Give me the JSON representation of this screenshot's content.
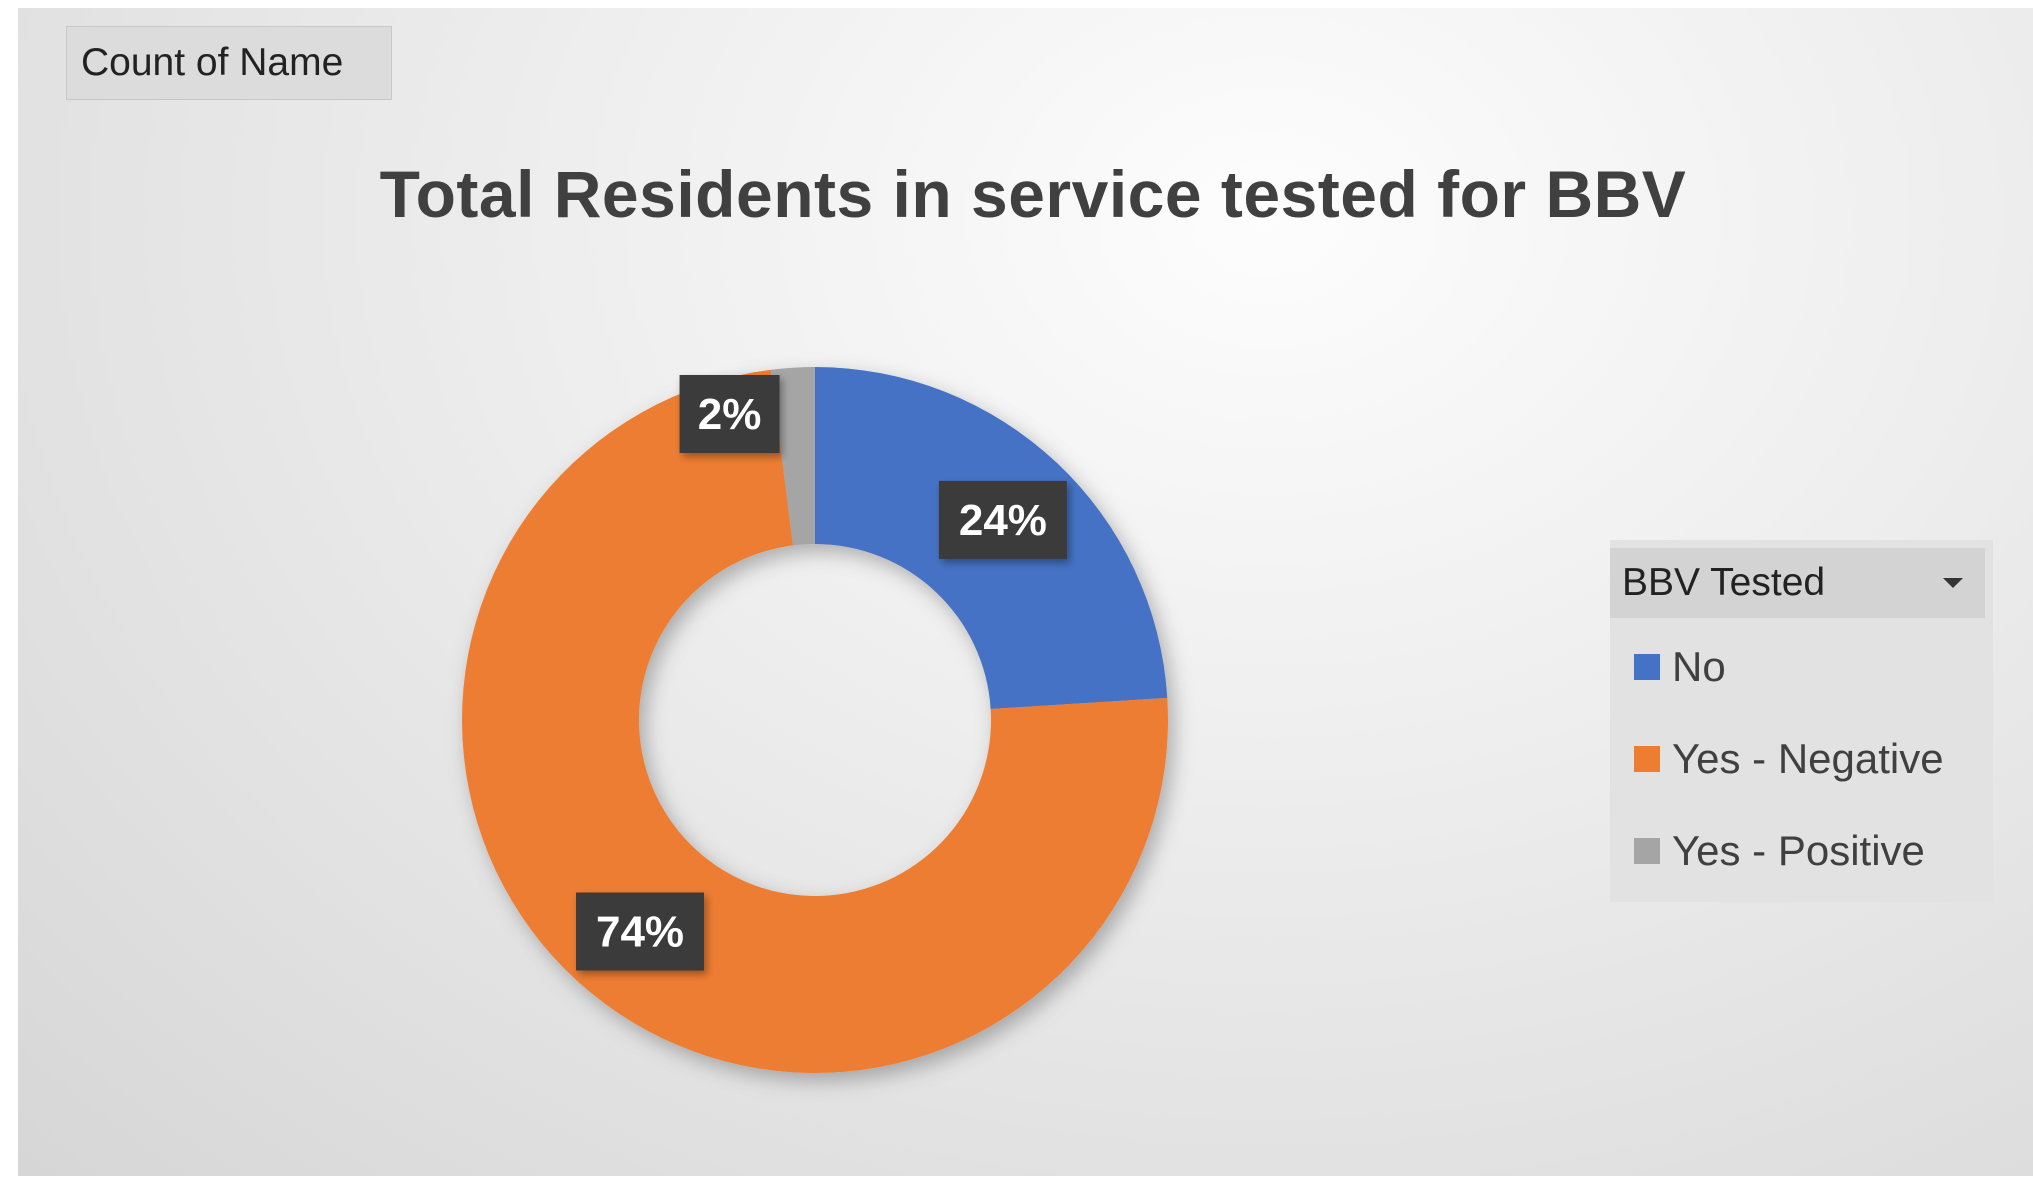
{
  "field_button": {
    "label": "Count of Name"
  },
  "chart_data": {
    "type": "pie",
    "title": "Total Residents in service tested for BBV",
    "variant": "donut",
    "legend_title": "BBV Tested",
    "legend_position": "right",
    "slices": [
      {
        "label": "No",
        "value": 24,
        "display": "24%",
        "color": "#4472c4"
      },
      {
        "label": "Yes - Negative",
        "value": 74,
        "display": "74%",
        "color": "#ed7d31"
      },
      {
        "label": "Yes - Positive",
        "value": 2,
        "display": "2%",
        "color": "#a5a5a5"
      }
    ]
  },
  "legend": {
    "title": "BBV Tested",
    "items": [
      {
        "label": "No",
        "color": "#4472c4"
      },
      {
        "label": "Yes - Negative",
        "color": "#ed7d31"
      },
      {
        "label": "Yes - Positive",
        "color": "#a5a5a5"
      }
    ]
  }
}
